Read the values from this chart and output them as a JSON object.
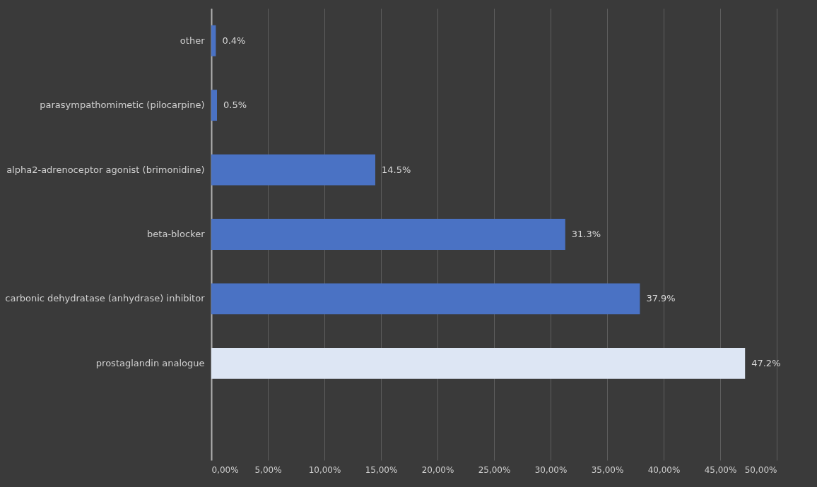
{
  "chart_data": {
    "type": "bar",
    "orientation": "horizontal",
    "categories": [
      "other",
      "parasympathomimetic (pilocarpine)",
      "alpha2-adrenoceptor agonist (brimonidine)",
      "beta-blocker",
      "carbonic dehydratase (anhydrase) inhibitor",
      "prostaglandin analogue",
      null
    ],
    "values": [
      0.4,
      0.5,
      14.5,
      31.3,
      37.9,
      47.2,
      null
    ],
    "colors": [
      "#4a72c4",
      "#4a72c4",
      "#4a72c4",
      "#4a72c4",
      "#4a72c4",
      "#dde6f4",
      null
    ],
    "value_labels": [
      "0.4%",
      "0.5%",
      "14.5%",
      "31.3%",
      "37.9%",
      "47.2%",
      null
    ],
    "xlim": [
      0,
      50
    ],
    "xticks": [
      {
        "value": 0,
        "label": "0,00%"
      },
      {
        "value": 5,
        "label": "5,00%"
      },
      {
        "value": 10,
        "label": "10,00%"
      },
      {
        "value": 15,
        "label": "15,00%"
      },
      {
        "value": 20,
        "label": "20,00%"
      },
      {
        "value": 25,
        "label": "25,00%"
      },
      {
        "value": 30,
        "label": "30,00%"
      },
      {
        "value": 35,
        "label": "35,00%"
      },
      {
        "value": 40,
        "label": "40,00%"
      },
      {
        "value": 45,
        "label": "45,00%"
      },
      {
        "value": 50,
        "label": "50,00%"
      }
    ],
    "grid": "x"
  }
}
